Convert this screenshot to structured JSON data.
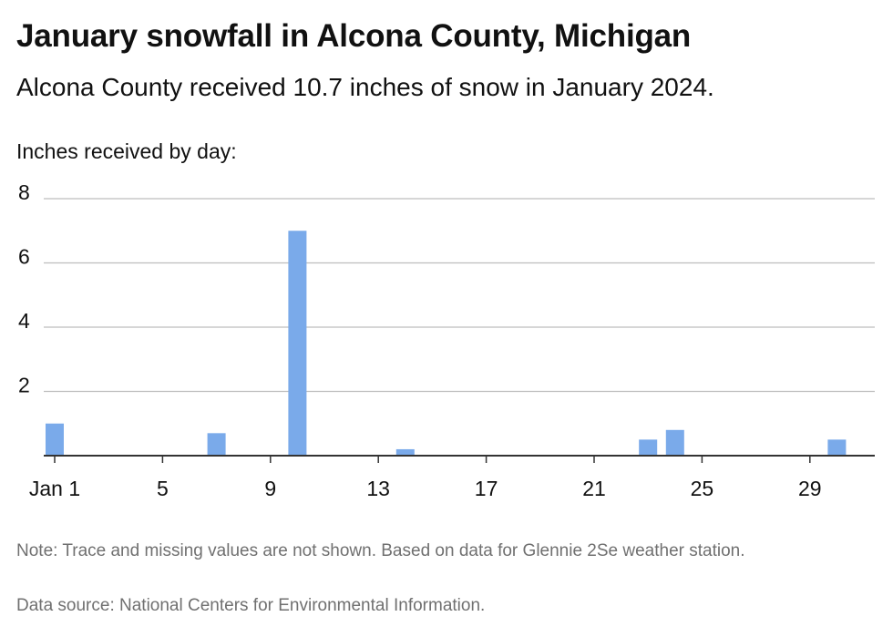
{
  "title": "January snowfall in Alcona County, Michigan",
  "subtitle": "Alcona County received 10.7 inches of snow in January 2024.",
  "colors": {
    "bar": "#7aaaea",
    "grid": "#bdbdbd",
    "axis": "#333333",
    "text": "#111111",
    "note": "#707070"
  },
  "chart_data": {
    "type": "bar",
    "title": "January snowfall in Alcona County, Michigan",
    "ylabel": "Inches received by day:",
    "xlabel": "",
    "ylim": [
      0,
      8
    ],
    "yticks": [
      2,
      4,
      6,
      8
    ],
    "grid": true,
    "x_tick_days": [
      1,
      5,
      9,
      13,
      17,
      21,
      25,
      29
    ],
    "x_tick_labels": [
      "Jan 1",
      "5",
      "9",
      "13",
      "17",
      "21",
      "25",
      "29"
    ],
    "days": [
      1,
      2,
      3,
      4,
      5,
      6,
      7,
      8,
      9,
      10,
      11,
      12,
      13,
      14,
      15,
      16,
      17,
      18,
      19,
      20,
      21,
      22,
      23,
      24,
      25,
      26,
      27,
      28,
      29,
      30,
      31
    ],
    "values": [
      1.0,
      0,
      0,
      0,
      0,
      0,
      0.7,
      0,
      0,
      7.0,
      0,
      0,
      0,
      0.2,
      0,
      0,
      0,
      0,
      0,
      0,
      0,
      0,
      0.5,
      0.8,
      0,
      0,
      0,
      0,
      0,
      0.5,
      0
    ]
  },
  "footer": {
    "note": "Note: Trace and missing values are not shown. Based on data for Glennie 2Se weather station.",
    "source": "Data source: National Centers for Environmental Information."
  }
}
